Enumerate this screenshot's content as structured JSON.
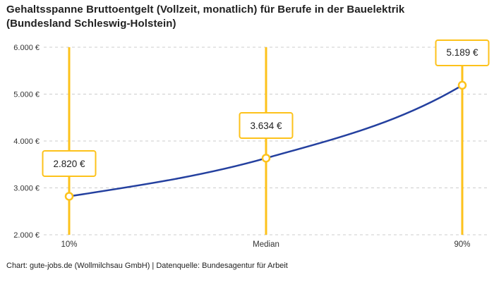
{
  "header": {
    "title_line1": "Gehaltsspanne Bruttoentgelt (Vollzeit, monatlich) für Berufe in der Bauelektrik",
    "title_line2": "(Bundesland Schleswig-Holstein)"
  },
  "footer": {
    "text": "Chart: gute-jobs.de (Wollmilchsau GmbH) | Datenquelle: Bundesagentur für Arbeit"
  },
  "chart_data": {
    "type": "line",
    "title": "Gehaltsspanne Bruttoentgelt (Vollzeit, monatlich) für Berufe in der Bauelektrik (Bundesland Schleswig-Holstein)",
    "categories": [
      "10%",
      "Median",
      "90%"
    ],
    "values": [
      2820,
      3634,
      5189
    ],
    "points": [
      {
        "category": "10%",
        "value": 2820,
        "label": "2.820 €"
      },
      {
        "category": "Median",
        "value": 3634,
        "label": "3.634 €"
      },
      {
        "category": "90%",
        "value": 5189,
        "label": "5.189 €"
      }
    ],
    "xlabel": "",
    "ylabel": "",
    "ylim": [
      2000,
      6000
    ],
    "yticks": [
      {
        "value": 2000,
        "label": "2.000 €"
      },
      {
        "value": 3000,
        "label": "3.000 €"
      },
      {
        "value": 4000,
        "label": "4.000 €"
      },
      {
        "value": 5000,
        "label": "5.000 €"
      },
      {
        "value": 6000,
        "label": "6.000 €"
      }
    ],
    "grid": "horizontal-dashed",
    "legend_position": "none",
    "colors": {
      "accent_yellow": "#FDC21B",
      "line_blue": "#24409F",
      "gridline": "#CCCCCC",
      "text": "#212121",
      "axis_text": "#333333"
    }
  }
}
